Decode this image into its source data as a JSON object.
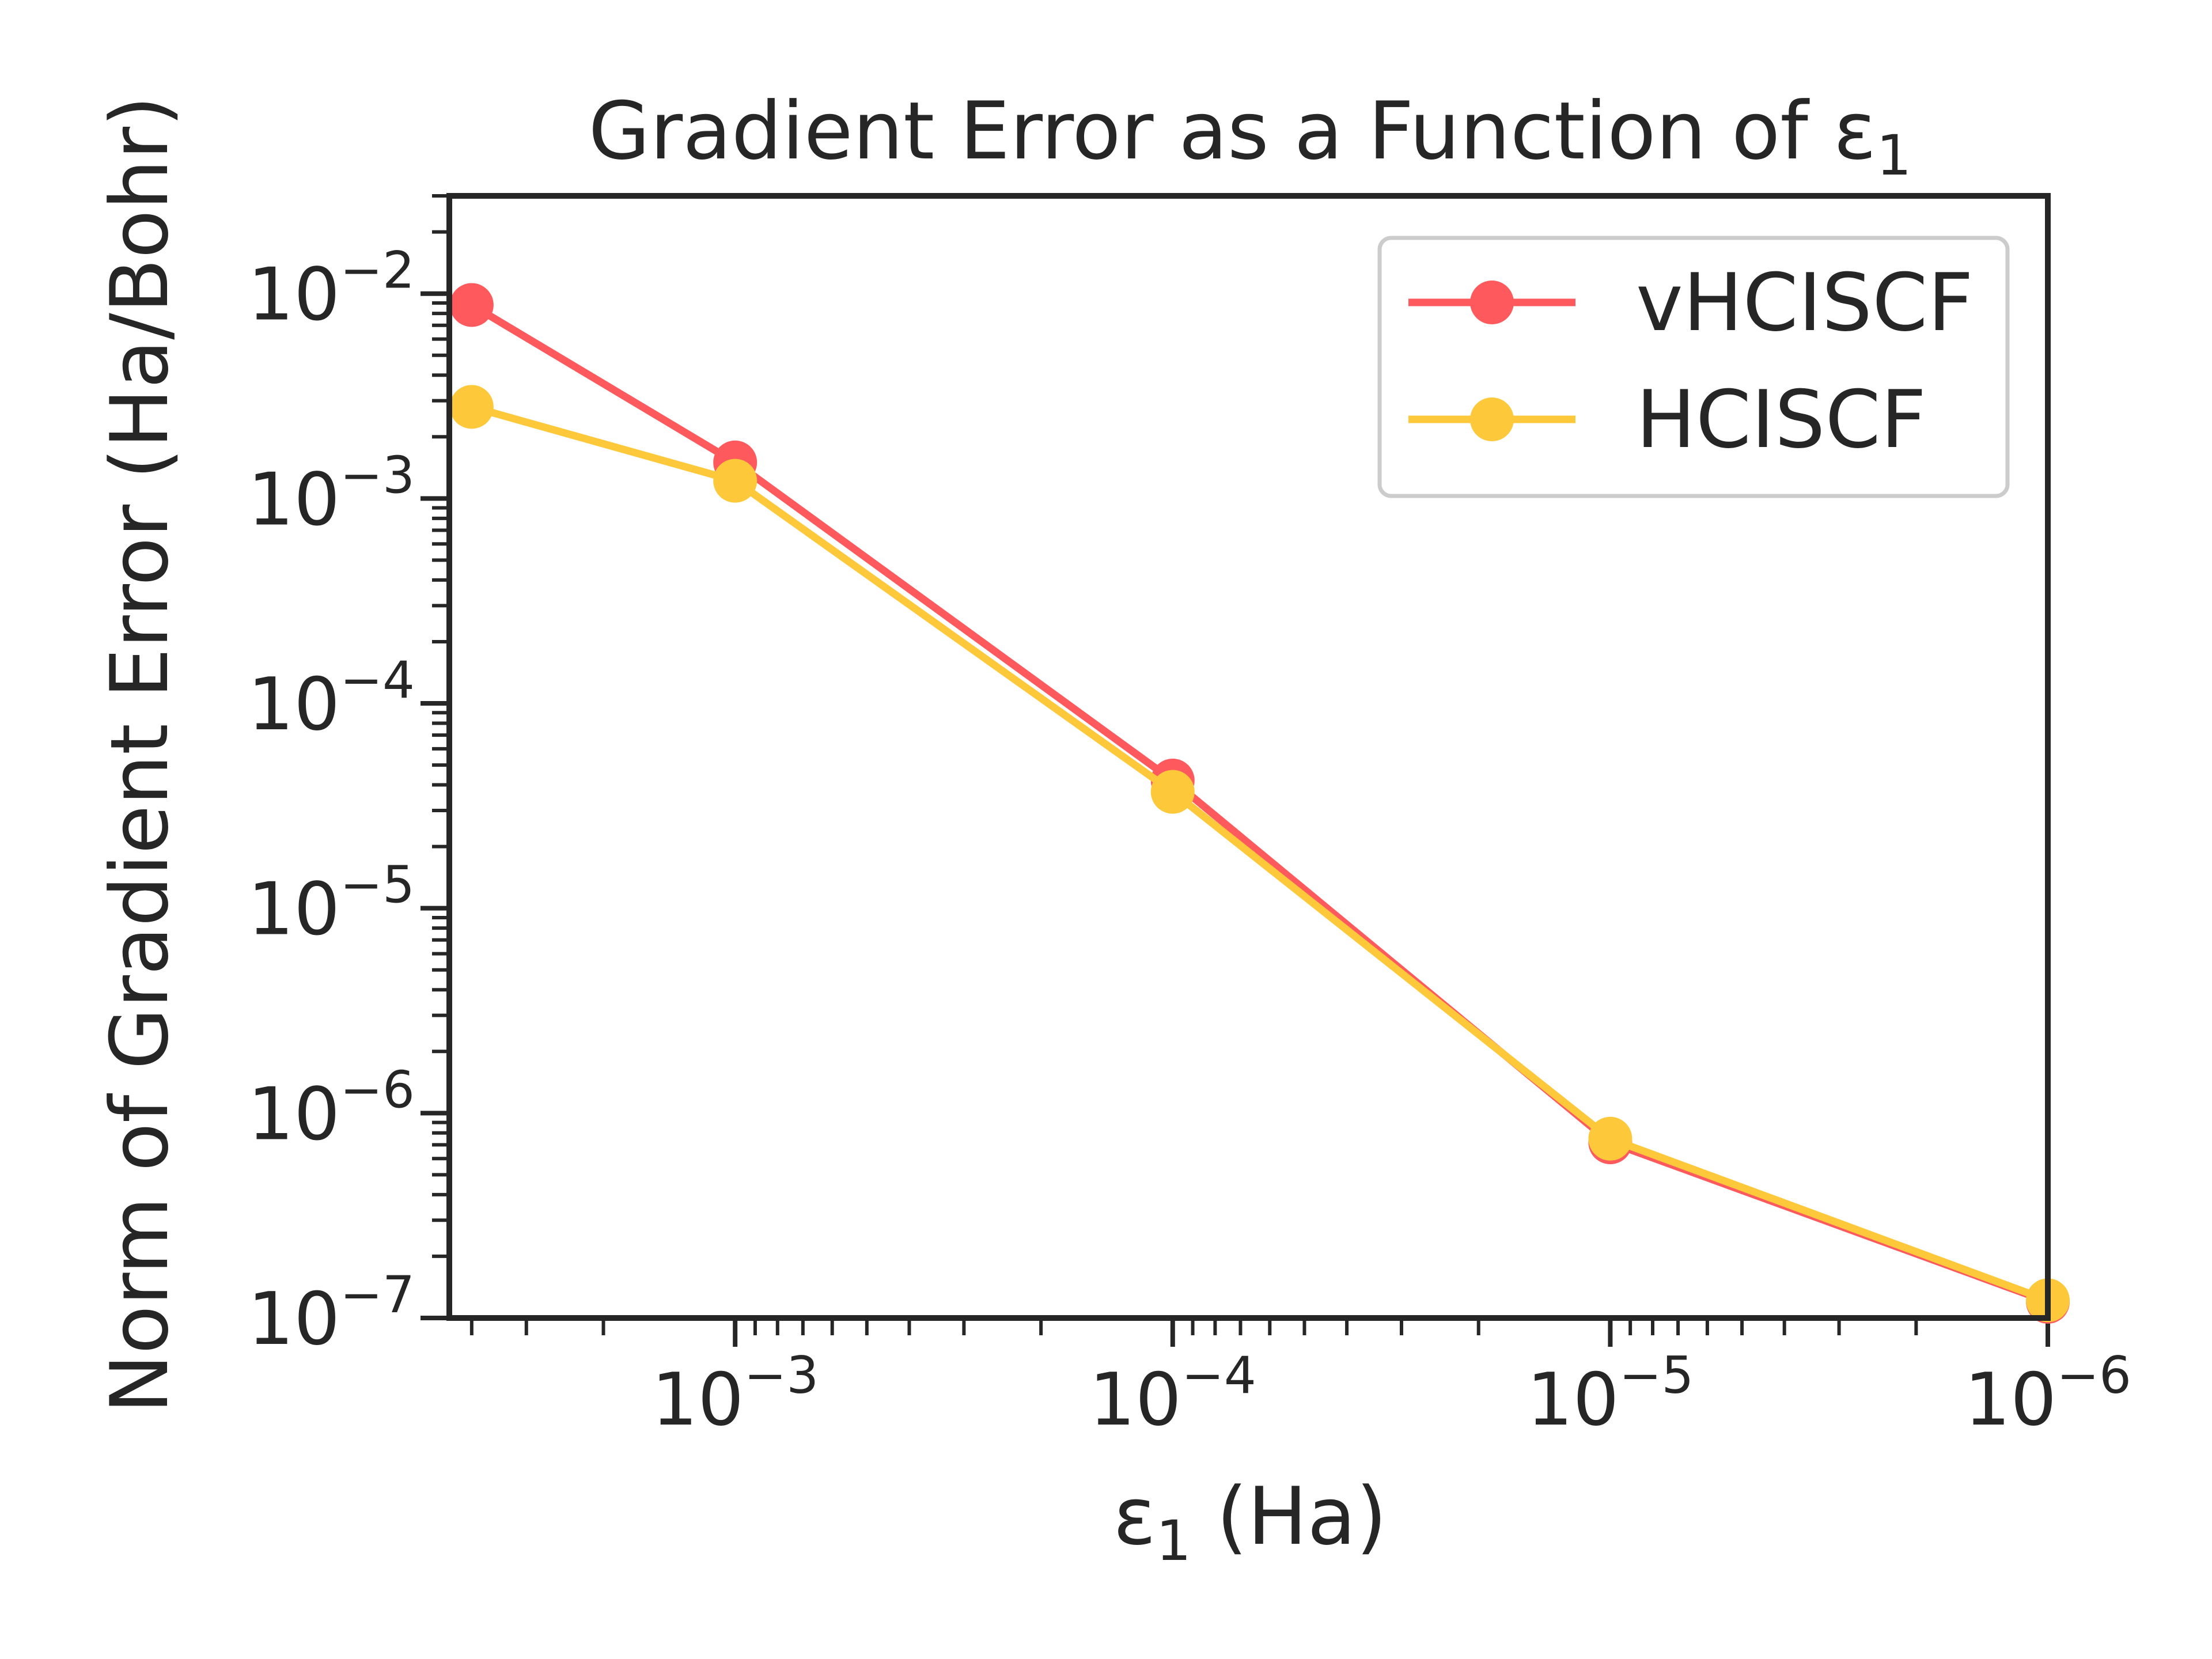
{
  "chart_data": {
    "type": "line",
    "title": "Gradient Error as a Function of ε",
    "title_sub": "1",
    "xlabel": "ε",
    "xlabel_sub": "1",
    "xlabel_unit": " (Ha)",
    "ylabel": "Norm of Gradient Error (Ha/Bohr)",
    "x_scale": "log",
    "y_scale": "log",
    "x_inverted": true,
    "xlim": [
      0.0045,
      1e-06
    ],
    "ylim": [
      1e-07,
      0.03
    ],
    "x": [
      0.004,
      0.001,
      0.0001,
      1e-05,
      1e-06
    ],
    "series": [
      {
        "name": "vHCISCF",
        "color": "#fe5a5d",
        "values": [
          0.0088,
          0.0015,
          4.2e-05,
          7.2e-07,
          1.2e-07
        ]
      },
      {
        "name": "HCISCF",
        "color": "#fdc93b",
        "values": [
          0.0028,
          0.00122,
          3.7e-05,
          7.5e-07,
          1.22e-07
        ]
      }
    ],
    "x_ticks": [
      {
        "base": "10",
        "exp": "−3",
        "value": 0.001
      },
      {
        "base": "10",
        "exp": "−4",
        "value": 0.0001
      },
      {
        "base": "10",
        "exp": "−5",
        "value": 1e-05
      },
      {
        "base": "10",
        "exp": "−6",
        "value": 1e-06
      }
    ],
    "y_ticks": [
      {
        "base": "10",
        "exp": "−2",
        "value": 0.01
      },
      {
        "base": "10",
        "exp": "−3",
        "value": 0.001
      },
      {
        "base": "10",
        "exp": "−4",
        "value": 0.0001
      },
      {
        "base": "10",
        "exp": "−5",
        "value": 1e-05
      },
      {
        "base": "10",
        "exp": "−6",
        "value": 1e-06
      },
      {
        "base": "10",
        "exp": "−7",
        "value": 1e-07
      }
    ],
    "legend": {
      "placement": "upper right"
    },
    "grid": false
  }
}
